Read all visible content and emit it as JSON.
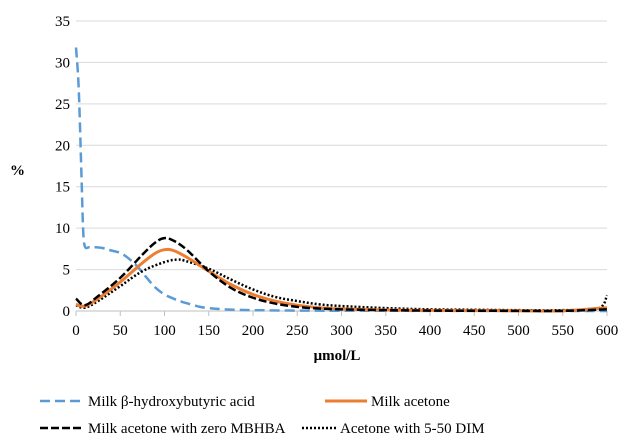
{
  "chart_data": {
    "type": "line",
    "title": "",
    "xlabel": "μmol/L",
    "ylabel": "%",
    "xlim": [
      0,
      600
    ],
    "ylim": [
      0,
      35
    ],
    "x_ticks": [
      0,
      50,
      100,
      150,
      200,
      250,
      300,
      350,
      400,
      450,
      500,
      550,
      600
    ],
    "y_ticks": [
      0,
      5,
      10,
      15,
      20,
      25,
      30,
      35
    ],
    "grid": "horizontal",
    "legend_position": "bottom",
    "series": [
      {
        "name": "Milk β-hydroxybutyric acid",
        "color": "#5b9bd5",
        "dash": "dashed",
        "x": [
          0,
          3,
          6,
          8,
          10,
          15,
          20,
          30,
          40,
          50,
          60,
          70,
          80,
          90,
          100,
          110,
          120,
          130,
          140,
          150,
          160,
          180,
          200,
          250,
          300,
          400,
          500,
          600
        ],
        "y": [
          31.8,
          27,
          17,
          10,
          7.8,
          7.7,
          7.7,
          7.6,
          7.3,
          7.0,
          6.3,
          5.3,
          4.0,
          2.8,
          2.0,
          1.5,
          1.1,
          0.8,
          0.5,
          0.35,
          0.25,
          0.15,
          0.1,
          0.05,
          0.03,
          0.02,
          0.01,
          0.0
        ]
      },
      {
        "name": "Milk acetone",
        "color": "#ed7d31",
        "dash": "solid",
        "x": [
          0,
          10,
          25,
          50,
          75,
          90,
          100,
          110,
          125,
          150,
          175,
          200,
          225,
          250,
          275,
          300,
          350,
          400,
          450,
          500,
          550,
          600
        ],
        "y": [
          0.8,
          0.6,
          1.5,
          3.5,
          5.8,
          7.0,
          7.4,
          7.3,
          6.5,
          4.8,
          3.2,
          2.0,
          1.2,
          0.7,
          0.4,
          0.25,
          0.12,
          0.08,
          0.05,
          0.03,
          0.02,
          0.4
        ]
      },
      {
        "name": "Milk acetone with zero MBHBA",
        "color": "#000000",
        "dash": "long-dash",
        "x": [
          0,
          10,
          25,
          50,
          75,
          90,
          100,
          110,
          125,
          150,
          175,
          200,
          225,
          250,
          275,
          300,
          350,
          400,
          450,
          500,
          550,
          600
        ],
        "y": [
          1.5,
          0.7,
          1.8,
          4.0,
          6.8,
          8.3,
          8.8,
          8.5,
          7.4,
          4.8,
          2.8,
          1.6,
          0.9,
          0.5,
          0.3,
          0.2,
          0.1,
          0.05,
          0.03,
          0.02,
          0.02,
          0.2
        ]
      },
      {
        "name": "Acetone with 5-50 DIM",
        "color": "#000000",
        "dash": "dotted",
        "x": [
          0,
          10,
          25,
          50,
          75,
          100,
          115,
          125,
          150,
          175,
          200,
          225,
          250,
          275,
          300,
          350,
          400,
          450,
          500,
          550,
          590,
          600
        ],
        "y": [
          0.7,
          0.4,
          1.2,
          3.0,
          4.8,
          5.9,
          6.2,
          6.0,
          5.1,
          3.8,
          2.6,
          1.7,
          1.2,
          0.8,
          0.6,
          0.35,
          0.2,
          0.15,
          0.1,
          0.1,
          0.3,
          1.9
        ]
      }
    ]
  }
}
